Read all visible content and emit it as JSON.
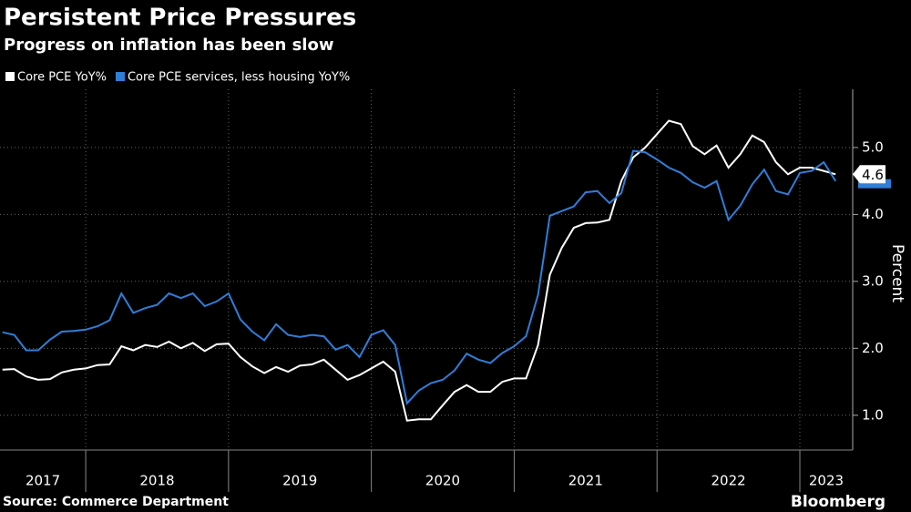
{
  "chart_data": {
    "type": "line",
    "title": "Persistent Price Pressures",
    "subtitle": "Progress on inflation has been slow",
    "y_label": "Percent",
    "source": "Source: Commerce Department",
    "brand": "Bloomberg",
    "x": [
      2017.417,
      2017.5,
      2017.583,
      2017.667,
      2017.75,
      2017.833,
      2017.917,
      2018,
      2018.083,
      2018.167,
      2018.25,
      2018.333,
      2018.417,
      2018.5,
      2018.583,
      2018.667,
      2018.75,
      2018.833,
      2018.917,
      2019,
      2019.083,
      2019.167,
      2019.25,
      2019.333,
      2019.417,
      2019.5,
      2019.583,
      2019.667,
      2019.75,
      2019.833,
      2019.917,
      2020,
      2020.083,
      2020.167,
      2020.25,
      2020.333,
      2020.417,
      2020.5,
      2020.583,
      2020.667,
      2020.75,
      2020.833,
      2020.917,
      2021,
      2021.083,
      2021.167,
      2021.25,
      2021.333,
      2021.417,
      2021.5,
      2021.583,
      2021.667,
      2021.75,
      2021.833,
      2021.917,
      2022,
      2022.083,
      2022.167,
      2022.25,
      2022.333,
      2022.417,
      2022.5,
      2022.583,
      2022.667,
      2022.75,
      2022.833,
      2022.917,
      2023,
      2023.083,
      2023.167,
      2023.25
    ],
    "series": [
      {
        "name": "Core PCE YoY%",
        "color": "#ffffff",
        "values": [
          1.68,
          1.69,
          1.58,
          1.53,
          1.54,
          1.64,
          1.68,
          1.7,
          1.75,
          1.76,
          2.03,
          1.97,
          2.05,
          2.02,
          2.1,
          2.0,
          2.08,
          1.96,
          2.06,
          2.07,
          1.87,
          1.73,
          1.63,
          1.72,
          1.65,
          1.74,
          1.76,
          1.83,
          1.68,
          1.53,
          1.6,
          1.7,
          1.8,
          1.65,
          0.92,
          0.94,
          0.94,
          1.15,
          1.35,
          1.45,
          1.35,
          1.35,
          1.5,
          1.55,
          1.55,
          2.05,
          3.1,
          3.5,
          3.8,
          3.87,
          3.88,
          3.92,
          4.5,
          4.85,
          5.0,
          5.2,
          5.4,
          5.35,
          5.02,
          4.9,
          5.03,
          4.7,
          4.9,
          5.18,
          5.08,
          4.78,
          4.6,
          4.7,
          4.7,
          4.65,
          4.6
        ],
        "end_label": "4.6"
      },
      {
        "name": "Core PCE services, less housing YoY%",
        "color": "#2f7ed8",
        "values": [
          2.24,
          2.2,
          1.97,
          1.97,
          2.13,
          2.25,
          2.26,
          2.28,
          2.33,
          2.42,
          2.82,
          2.53,
          2.6,
          2.65,
          2.82,
          2.75,
          2.82,
          2.63,
          2.7,
          2.82,
          2.43,
          2.25,
          2.12,
          2.36,
          2.2,
          2.17,
          2.2,
          2.18,
          1.98,
          2.05,
          1.87,
          2.2,
          2.27,
          2.05,
          1.18,
          1.37,
          1.48,
          1.53,
          1.67,
          1.92,
          1.83,
          1.78,
          1.93,
          2.03,
          2.18,
          2.8,
          3.98,
          4.05,
          4.12,
          4.33,
          4.35,
          4.17,
          4.32,
          4.95,
          4.93,
          4.82,
          4.7,
          4.62,
          4.48,
          4.4,
          4.5,
          3.92,
          4.13,
          4.45,
          4.67,
          4.35,
          4.3,
          4.62,
          4.65,
          4.78,
          4.5
        ]
      }
    ],
    "xlim": [
      2017.4,
      2023.37
    ],
    "xticks": [
      2018,
      2019,
      2020,
      2021,
      2022,
      2023
    ],
    "year_labels": [
      "2017",
      "2018",
      "2019",
      "2020",
      "2021",
      "2022",
      "2023"
    ],
    "ylim": [
      0.48,
      5.87
    ],
    "yticks": [
      {
        "value": 1,
        "label": "1.0"
      },
      {
        "value": 2,
        "label": "2.0"
      },
      {
        "value": 3,
        "label": "3.0"
      },
      {
        "value": 4,
        "label": "4.0"
      },
      {
        "value": 5,
        "label": "5.0"
      }
    ],
    "grid": true
  }
}
